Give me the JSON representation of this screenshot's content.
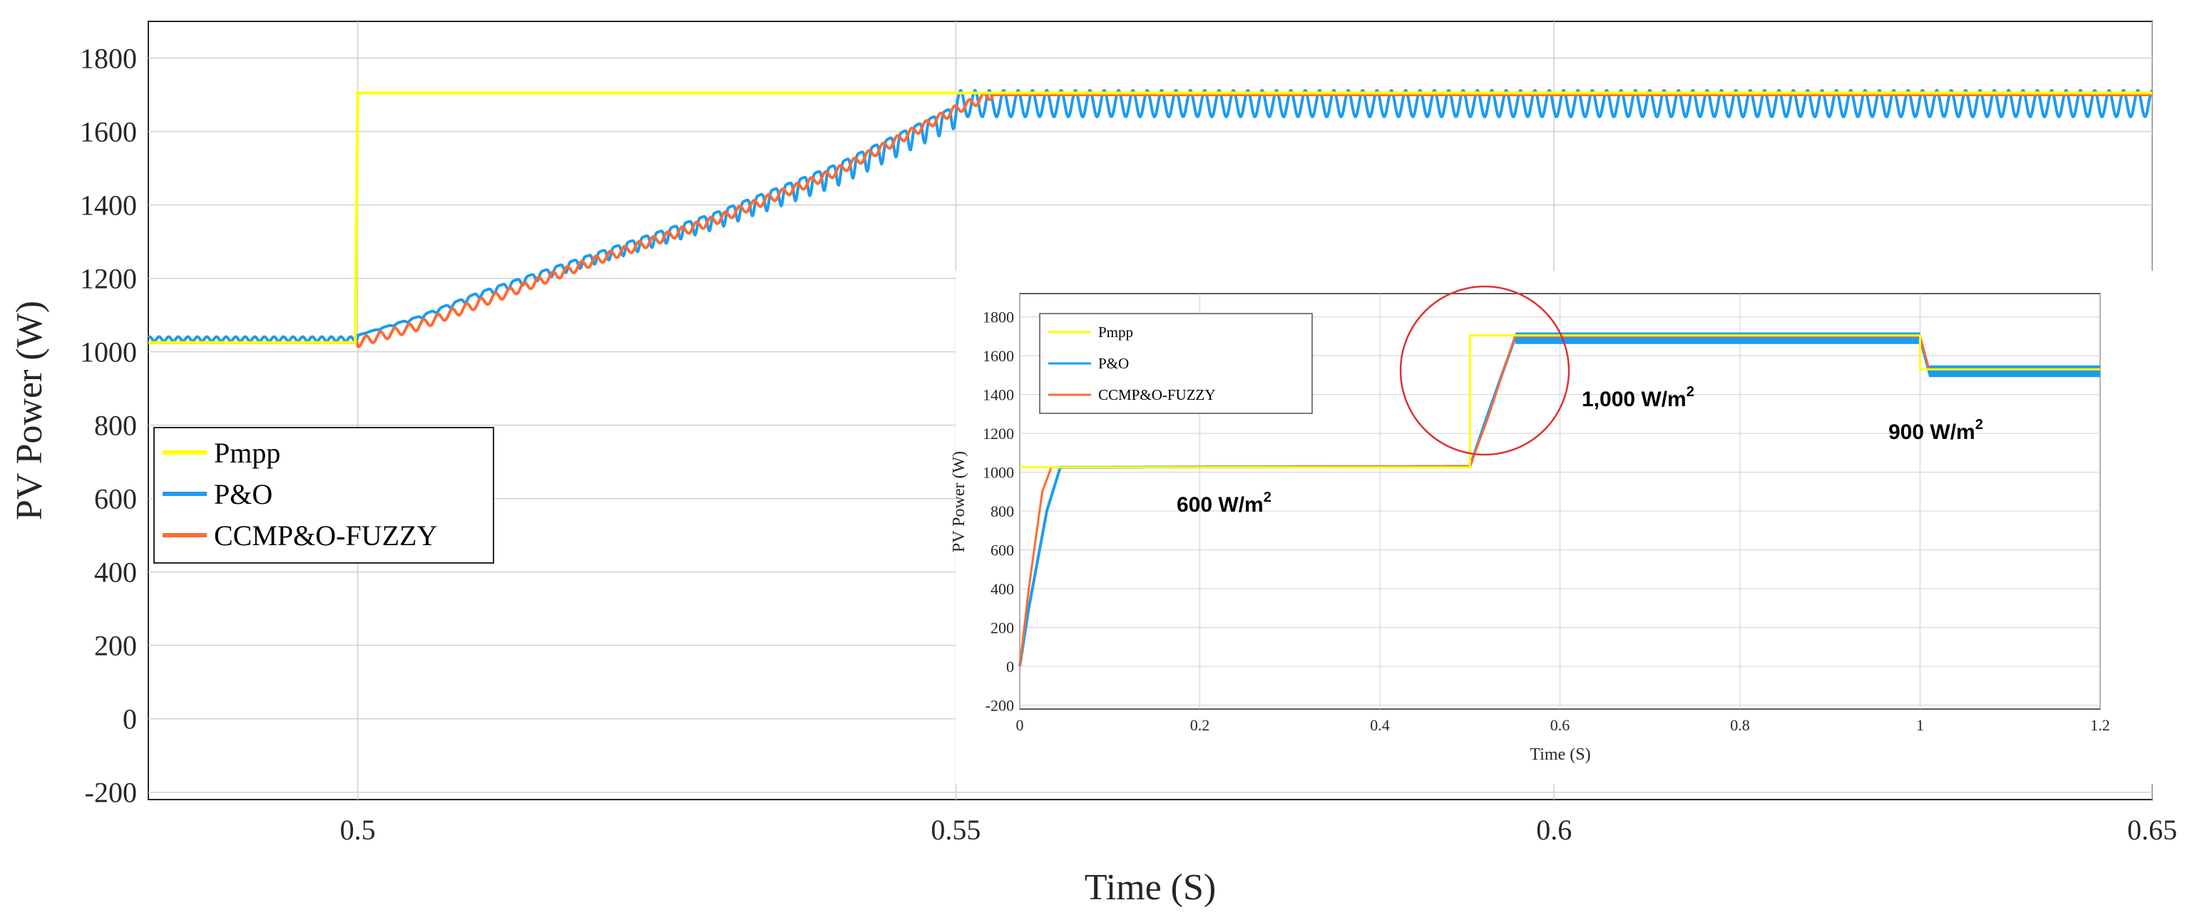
{
  "chart_data": [
    {
      "type": "line",
      "name": "main",
      "xlabel": "Time  (S)",
      "ylabel": "PV Power (W)",
      "xlim": [
        0.4825,
        0.65
      ],
      "ylim": [
        -220,
        1900
      ],
      "xticks": [
        0.5,
        0.55,
        0.6,
        0.65
      ],
      "xtick_labels": [
        "0.5",
        "0.55",
        "0.6",
        "0.65"
      ],
      "yticks": [
        -200,
        0,
        200,
        400,
        600,
        800,
        1000,
        1200,
        1400,
        1600,
        1800
      ],
      "ytick_labels": [
        "-200",
        "0",
        "200",
        "400",
        "600",
        "800",
        "1000",
        "1200",
        "1400",
        "1600",
        "1800"
      ],
      "grid": true,
      "legend": "left",
      "series": [
        {
          "name": "Pmpp",
          "color": "#ffff00",
          "points": [
            [
              0.4825,
              1025
            ],
            [
              0.4998,
              1025
            ],
            [
              0.5,
              1705
            ],
            [
              0.65,
              1705
            ]
          ]
        },
        {
          "name": "P&O",
          "color": "#1e9bf0",
          "points": [
            [
              0.4825,
              1035
            ],
            [
              0.5,
              1035
            ],
            [
              0.505,
              1085
            ],
            [
              0.51,
              1150
            ],
            [
              0.52,
              1260
            ],
            [
              0.53,
              1370
            ],
            [
              0.54,
              1500
            ],
            [
              0.55,
              1660
            ],
            [
              0.552,
              1690
            ],
            [
              0.65,
              1690
            ]
          ],
          "ripple": {
            "start": 0.5,
            "period": 0.0012,
            "amplitude_before_0.55": 60,
            "steady_max": 1712,
            "steady_min": 1640
          }
        },
        {
          "name": "CCMP&O-FUZZY",
          "color": "#ff6a33",
          "points": [
            [
              0.4825,
              1025
            ],
            [
              0.5,
              1025
            ],
            [
              0.505,
              1070
            ],
            [
              0.51,
              1130
            ],
            [
              0.52,
              1250
            ],
            [
              0.53,
              1360
            ],
            [
              0.54,
              1490
            ],
            [
              0.55,
              1660
            ],
            [
              0.553,
              1700
            ],
            [
              0.65,
              1700
            ]
          ]
        }
      ],
      "legend_labels": [
        "Pmpp",
        "P&O",
        "CCMP&O-FUZZY"
      ]
    },
    {
      "type": "line",
      "name": "inset",
      "xlabel": "Time (S)",
      "ylabel": "PV Power (W)",
      "xlim": [
        0,
        1.2
      ],
      "ylim": [
        -220,
        1920
      ],
      "xticks": [
        0,
        0.2,
        0.4,
        0.6,
        0.8,
        1,
        1.2
      ],
      "xtick_labels": [
        "0",
        "0.2",
        "0.4",
        "0.6",
        "0.8",
        "1",
        "1.2"
      ],
      "yticks": [
        -200,
        0,
        200,
        400,
        600,
        800,
        1000,
        1200,
        1400,
        1600,
        1800
      ],
      "ytick_labels": [
        "-200",
        "0",
        "200",
        "400",
        "600",
        "800",
        "1000",
        "1200",
        "1400",
        "1600",
        "1800"
      ],
      "grid": true,
      "legend": "top-left",
      "series": [
        {
          "name": "Pmpp",
          "color": "#ffff00",
          "points": [
            [
              0,
              1025
            ],
            [
              0.5,
              1025
            ],
            [
              0.5,
              1705
            ],
            [
              1.0,
              1705
            ],
            [
              1.0,
              1530
            ],
            [
              1.2,
              1530
            ]
          ]
        },
        {
          "name": "P&O",
          "color": "#1e9bf0",
          "points": [
            [
              0,
              0
            ],
            [
              0.01,
              300
            ],
            [
              0.03,
              800
            ],
            [
              0.045,
              1025
            ],
            [
              0.5,
              1030
            ],
            [
              0.52,
              1300
            ],
            [
              0.55,
              1690
            ],
            [
              1.0,
              1690
            ],
            [
              1.01,
              1520
            ],
            [
              1.2,
              1520
            ]
          ],
          "band": {
            "from": 0.55,
            "to": 1.2,
            "width": 60
          }
        },
        {
          "name": "CCMP&O-FUZZY",
          "color": "#ff6a33",
          "points": [
            [
              0,
              0
            ],
            [
              0.01,
              400
            ],
            [
              0.025,
              900
            ],
            [
              0.035,
              1025
            ],
            [
              0.5,
              1030
            ],
            [
              0.52,
              1280
            ],
            [
              0.55,
              1700
            ],
            [
              1.0,
              1700
            ],
            [
              1.01,
              1530
            ],
            [
              1.2,
              1530
            ]
          ]
        }
      ],
      "legend_labels": [
        "Pmpp",
        "P&O",
        "CCMP&O-FUZZY"
      ],
      "annotations": [
        {
          "text_main": "600  W/m",
          "sup": "2",
          "at": [
            0.35,
            800
          ]
        },
        {
          "text_main": "1,000  W/m",
          "sup": "2",
          "at": [
            0.62,
            1380
          ]
        },
        {
          "text_main": "900  W/m",
          "sup": "2",
          "at": [
            1.0,
            1200
          ]
        }
      ],
      "highlight_circle": {
        "center": [
          0.535,
          1500
        ],
        "color": "#e03030"
      }
    }
  ]
}
